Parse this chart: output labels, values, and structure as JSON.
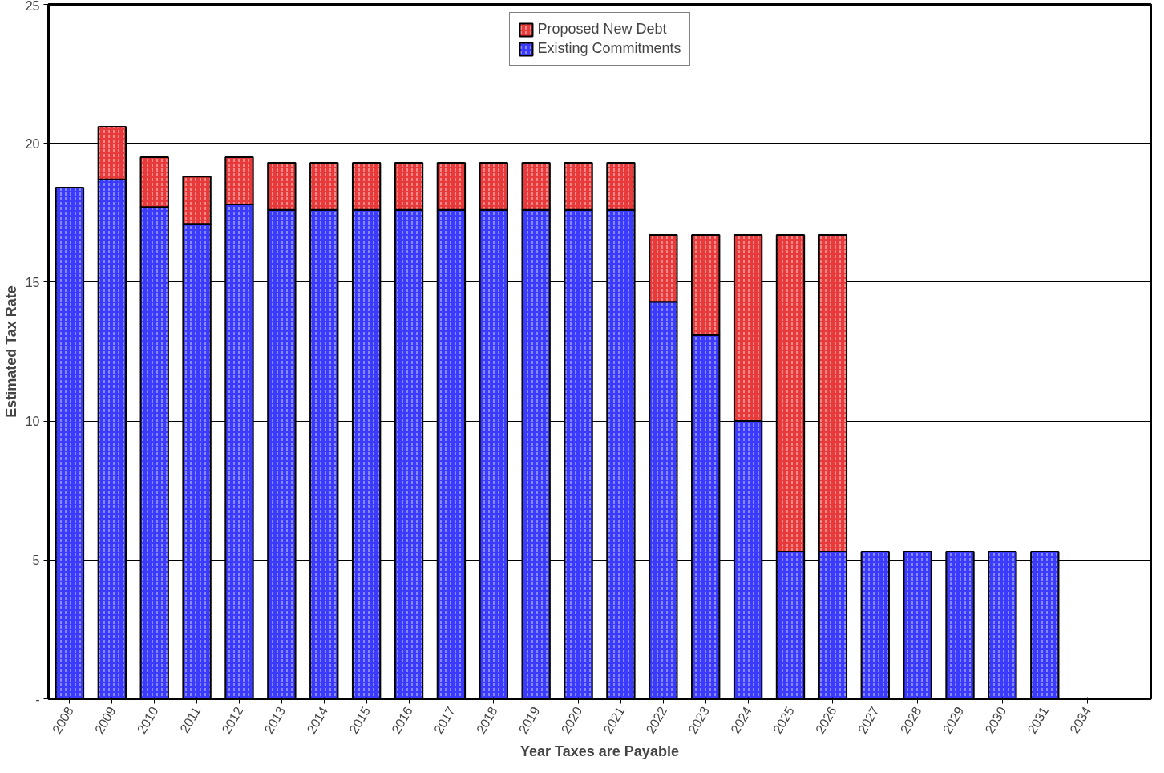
{
  "chart_data": {
    "type": "bar",
    "stacked": true,
    "xlabel": "Year Taxes are Payable",
    "ylabel": "Estimated Tax Rate",
    "categories": [
      "2008",
      "2009",
      "2010",
      "2011",
      "2012",
      "2013",
      "2014",
      "2015",
      "2016",
      "2017",
      "2018",
      "2019",
      "2020",
      "2021",
      "2022",
      "2023",
      "2024",
      "2025",
      "2026",
      "2027",
      "2028",
      "2029",
      "2030",
      "2031",
      "2034"
    ],
    "series": [
      {
        "name": "Existing Commitments",
        "color": "#3b3bff",
        "values": [
          18.4,
          18.7,
          17.7,
          17.1,
          17.8,
          17.6,
          17.6,
          17.6,
          17.6,
          17.6,
          17.6,
          17.6,
          17.6,
          17.6,
          14.3,
          13.1,
          10.0,
          5.3,
          5.3,
          5.3,
          5.3,
          5.3,
          5.3,
          5.3,
          null
        ]
      },
      {
        "name": "Proposed New Debt",
        "color": "#e83a3a",
        "values": [
          null,
          1.9,
          1.8,
          1.7,
          1.7,
          1.7,
          1.7,
          1.7,
          1.7,
          1.7,
          1.7,
          1.7,
          1.7,
          1.7,
          2.4,
          3.6,
          6.7,
          11.4,
          11.4,
          null,
          null,
          null,
          null,
          null,
          null
        ]
      }
    ],
    "ylim": [
      0,
      25
    ],
    "yticks": [
      {
        "value": 0,
        "label": "-"
      },
      5,
      10,
      15,
      20,
      25
    ],
    "grid": "y",
    "legend": "top"
  }
}
